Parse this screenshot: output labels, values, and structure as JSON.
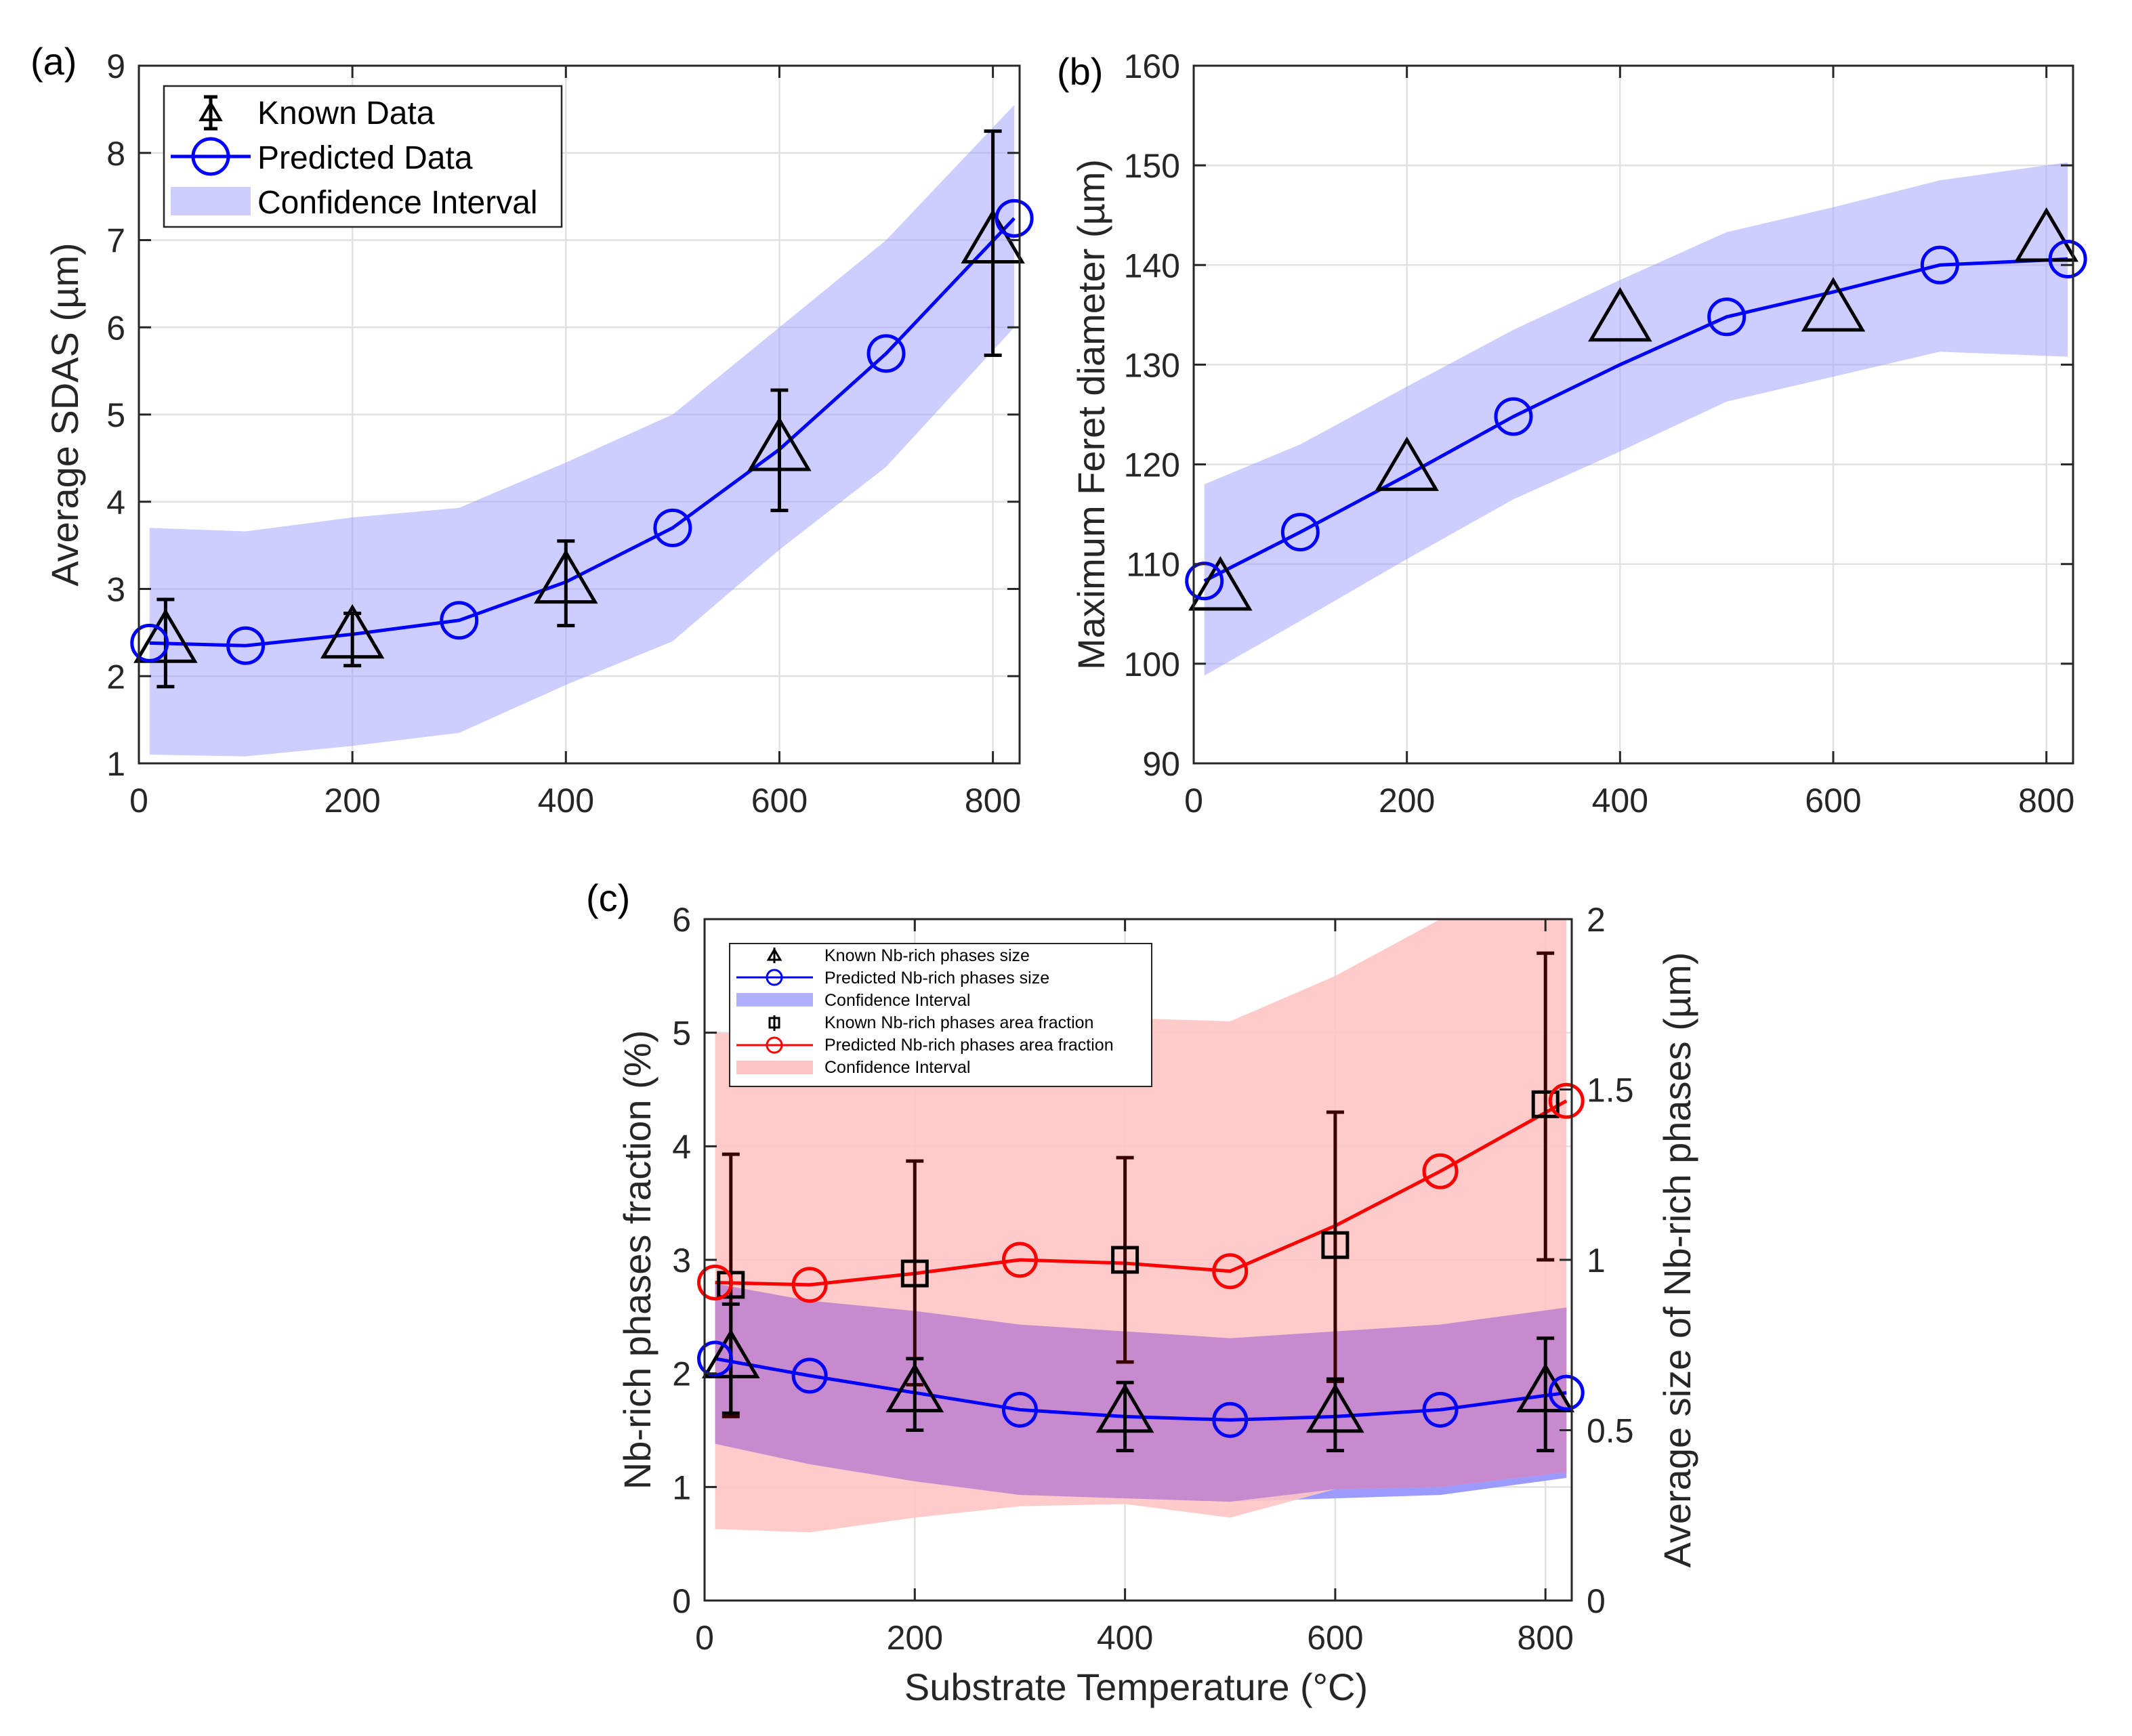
{
  "chart_data": [
    {
      "panel": "(a)",
      "type": "line",
      "xlim": [
        0,
        825
      ],
      "ylim": [
        1,
        9
      ],
      "xticks": [
        0,
        200,
        400,
        600,
        800
      ],
      "yticks": [
        1,
        2,
        3,
        4,
        5,
        6,
        7,
        8,
        9
      ],
      "xlabel": "",
      "ylabel": "Average SDAS (µm)",
      "grid": true,
      "legend_position": "top-left",
      "legend": [
        "Known Data",
        "Predicted Data",
        "Confidence Interval"
      ],
      "known": {
        "name": "Known Data",
        "x": [
          25,
          200,
          400,
          600,
          800
        ],
        "y": [
          2.4,
          2.45,
          3.08,
          4.6,
          6.98
        ],
        "err_low": [
          1.88,
          2.12,
          2.58,
          3.9,
          5.68
        ],
        "err_high": [
          2.88,
          2.72,
          3.55,
          5.28,
          8.25
        ]
      },
      "predicted": {
        "name": "Predicted Data",
        "x": [
          10,
          100,
          300,
          500,
          700,
          820
        ],
        "y": [
          2.38,
          2.35,
          2.64,
          3.7,
          5.7,
          7.25
        ],
        "line_x": [
          10,
          100,
          200,
          300,
          400,
          500,
          600,
          700,
          820
        ],
        "line_y": [
          2.38,
          2.35,
          2.48,
          2.64,
          3.08,
          3.7,
          4.6,
          5.7,
          7.25
        ]
      },
      "confidence_interval": {
        "name": "Confidence Interval",
        "x": [
          10,
          100,
          200,
          300,
          400,
          500,
          600,
          700,
          820
        ],
        "low": [
          1.1,
          1.08,
          1.2,
          1.35,
          1.9,
          2.4,
          3.45,
          4.4,
          6.0
        ],
        "high": [
          3.7,
          3.66,
          3.82,
          3.93,
          4.45,
          5.0,
          6.0,
          7.0,
          8.55
        ]
      },
      "colors": {
        "known": "#000000",
        "predicted": "#0000ff",
        "band": "#9b9bff"
      }
    },
    {
      "panel": "(b)",
      "type": "line",
      "xlim": [
        0,
        825
      ],
      "ylim": [
        90,
        160
      ],
      "xticks": [
        0,
        200,
        400,
        600,
        800
      ],
      "yticks": [
        90,
        100,
        110,
        120,
        130,
        140,
        150,
        160
      ],
      "xlabel": "",
      "ylabel": "Maximum Feret diameter (µm)",
      "grid": true,
      "known": {
        "x": [
          25,
          200,
          400,
          600,
          800
        ],
        "y": [
          107.5,
          119.5,
          134.5,
          135.5,
          142.5
        ]
      },
      "predicted": {
        "x": [
          10,
          100,
          300,
          500,
          700,
          820
        ],
        "y": [
          108.3,
          113.2,
          124.8,
          134.8,
          140.0,
          140.6
        ],
        "line_x": [
          10,
          100,
          200,
          300,
          400,
          500,
          600,
          700,
          820
        ],
        "line_y": [
          108.3,
          113.2,
          118.9,
          124.8,
          130.0,
          134.8,
          137.3,
          140.0,
          140.6
        ]
      },
      "confidence_interval": {
        "x": [
          10,
          100,
          200,
          300,
          400,
          500,
          600,
          700,
          820
        ],
        "low": [
          98.8,
          104.3,
          110.5,
          116.5,
          121.3,
          126.3,
          128.8,
          131.3,
          130.8
        ],
        "high": [
          118.0,
          122.0,
          127.8,
          133.5,
          138.5,
          143.3,
          145.8,
          148.5,
          150.3
        ]
      },
      "colors": {
        "known": "#000000",
        "predicted": "#0000ff",
        "band": "#9b9bff"
      }
    },
    {
      "panel": "(c)",
      "type": "line",
      "xlim": [
        0,
        825
      ],
      "ylim_left": [
        0,
        6
      ],
      "ylim_right": [
        0,
        2
      ],
      "xticks": [
        0,
        200,
        400,
        600,
        800
      ],
      "yticks_left": [
        0,
        1,
        2,
        3,
        4,
        5,
        6
      ],
      "yticks_right": [
        "0",
        "0.5",
        "1",
        "1.5",
        "2"
      ],
      "yticks_right_values": [
        0,
        0.5,
        1,
        1.5,
        2
      ],
      "xlabel": "Substrate Temperature (°C)",
      "ylabel_left": "Nb-rich phases fraction (%)",
      "ylabel_right": "Average size of Nb-rich phases (µm)",
      "grid": true,
      "legend_position": "top-left",
      "legend": [
        "Known Nb-rich phases size",
        "Predicted Nb-rich phases size",
        "Confidence Interval",
        "Known Nb-rich phases area fraction",
        "Predicted Nb-rich phases area fraction",
        "Confidence Interval"
      ],
      "known_size": {
        "axis": "right",
        "x": [
          25,
          200,
          400,
          600,
          800
        ],
        "y": [
          0.71,
          0.61,
          0.55,
          0.55,
          0.61
        ],
        "err_low": [
          0.55,
          0.5,
          0.44,
          0.44,
          0.44
        ],
        "err_high": [
          0.87,
          0.71,
          0.64,
          0.65,
          0.77
        ]
      },
      "predicted_size": {
        "axis": "right",
        "x": [
          10,
          100,
          300,
          500,
          700,
          820
        ],
        "y": [
          0.71,
          0.66,
          0.56,
          0.53,
          0.56,
          0.61
        ],
        "line_x": [
          10,
          100,
          200,
          300,
          400,
          500,
          600,
          700,
          820
        ],
        "line_y": [
          0.71,
          0.66,
          0.61,
          0.56,
          0.54,
          0.53,
          0.54,
          0.56,
          0.61
        ]
      },
      "size_ci": {
        "axis": "right",
        "x": [
          10,
          100,
          200,
          300,
          400,
          500,
          600,
          700,
          820
        ],
        "low": [
          0.46,
          0.4,
          0.35,
          0.31,
          0.3,
          0.29,
          0.3,
          0.31,
          0.36
        ],
        "high": [
          0.93,
          0.88,
          0.85,
          0.81,
          0.79,
          0.77,
          0.79,
          0.81,
          0.86
        ]
      },
      "known_fraction": {
        "axis": "left",
        "x": [
          25,
          200,
          400,
          600,
          800
        ],
        "y": [
          2.78,
          2.88,
          3.0,
          3.13,
          4.37
        ],
        "err_low": [
          1.62,
          1.9,
          2.1,
          1.93,
          3.0
        ],
        "err_high": [
          3.93,
          3.87,
          3.9,
          4.3,
          5.7
        ]
      },
      "predicted_fraction": {
        "axis": "left",
        "x": [
          10,
          100,
          300,
          500,
          700,
          820
        ],
        "y": [
          2.8,
          2.78,
          3.0,
          2.9,
          3.78,
          4.4
        ],
        "line_x": [
          10,
          100,
          200,
          300,
          400,
          500,
          600,
          700,
          820
        ],
        "line_y": [
          2.8,
          2.78,
          2.88,
          3.0,
          2.97,
          2.9,
          3.3,
          3.78,
          4.4
        ]
      },
      "fraction_ci": {
        "axis": "left",
        "x": [
          10,
          100,
          200,
          300,
          400,
          500,
          600,
          700,
          820
        ],
        "low": [
          0.63,
          0.6,
          0.73,
          0.83,
          0.85,
          0.73,
          0.98,
          1.0,
          1.13
        ],
        "high": [
          5.0,
          4.97,
          5.07,
          5.13,
          5.13,
          5.1,
          5.5,
          6.0,
          6.0
        ]
      },
      "colors": {
        "known": "#000000",
        "predicted_size": "#0000ff",
        "predicted_fraction": "#ff0000",
        "size_band": "#9b9bff",
        "fraction_band": "#ffc4c4",
        "overlap": "#c080d0"
      }
    }
  ]
}
